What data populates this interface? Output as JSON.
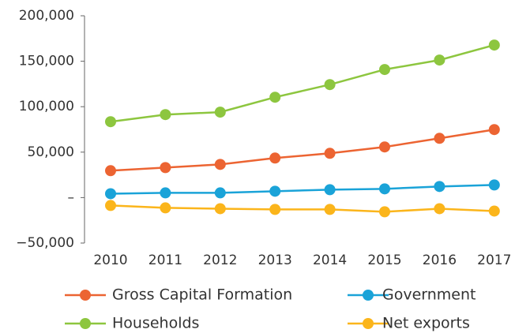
{
  "chart_data": {
    "type": "line",
    "categories": [
      "2010",
      "2011",
      "2012",
      "2013",
      "2014",
      "2015",
      "2016",
      "2017"
    ],
    "series": [
      {
        "name": "Gross Capital Formation",
        "color": "#ec6432",
        "values": [
          29600,
          33000,
          36500,
          43500,
          48700,
          55700,
          65200,
          74800
        ]
      },
      {
        "name": "Government",
        "color": "#1aa3d8",
        "values": [
          4300,
          5200,
          5200,
          7000,
          8700,
          9600,
          12200,
          13900
        ]
      },
      {
        "name": "Households",
        "color": "#8dc63f",
        "values": [
          83500,
          91300,
          94000,
          110400,
          124300,
          140900,
          151300,
          167800
        ]
      },
      {
        "name": "Net exports",
        "color": "#fbb51b",
        "values": [
          -8700,
          -11300,
          -12200,
          -13000,
          -13000,
          -15600,
          -12200,
          -14800
        ]
      }
    ],
    "ylim": [
      -50000,
      200000
    ],
    "yticks": [
      {
        "value": -50000,
        "label": "−50,000"
      },
      {
        "value": 0,
        "label": "–"
      },
      {
        "value": 50000,
        "label": "50,000"
      },
      {
        "value": 100000,
        "label": "100,000"
      },
      {
        "value": 150000,
        "label": "150,000"
      },
      {
        "value": 200000,
        "label": "200,000"
      }
    ]
  }
}
